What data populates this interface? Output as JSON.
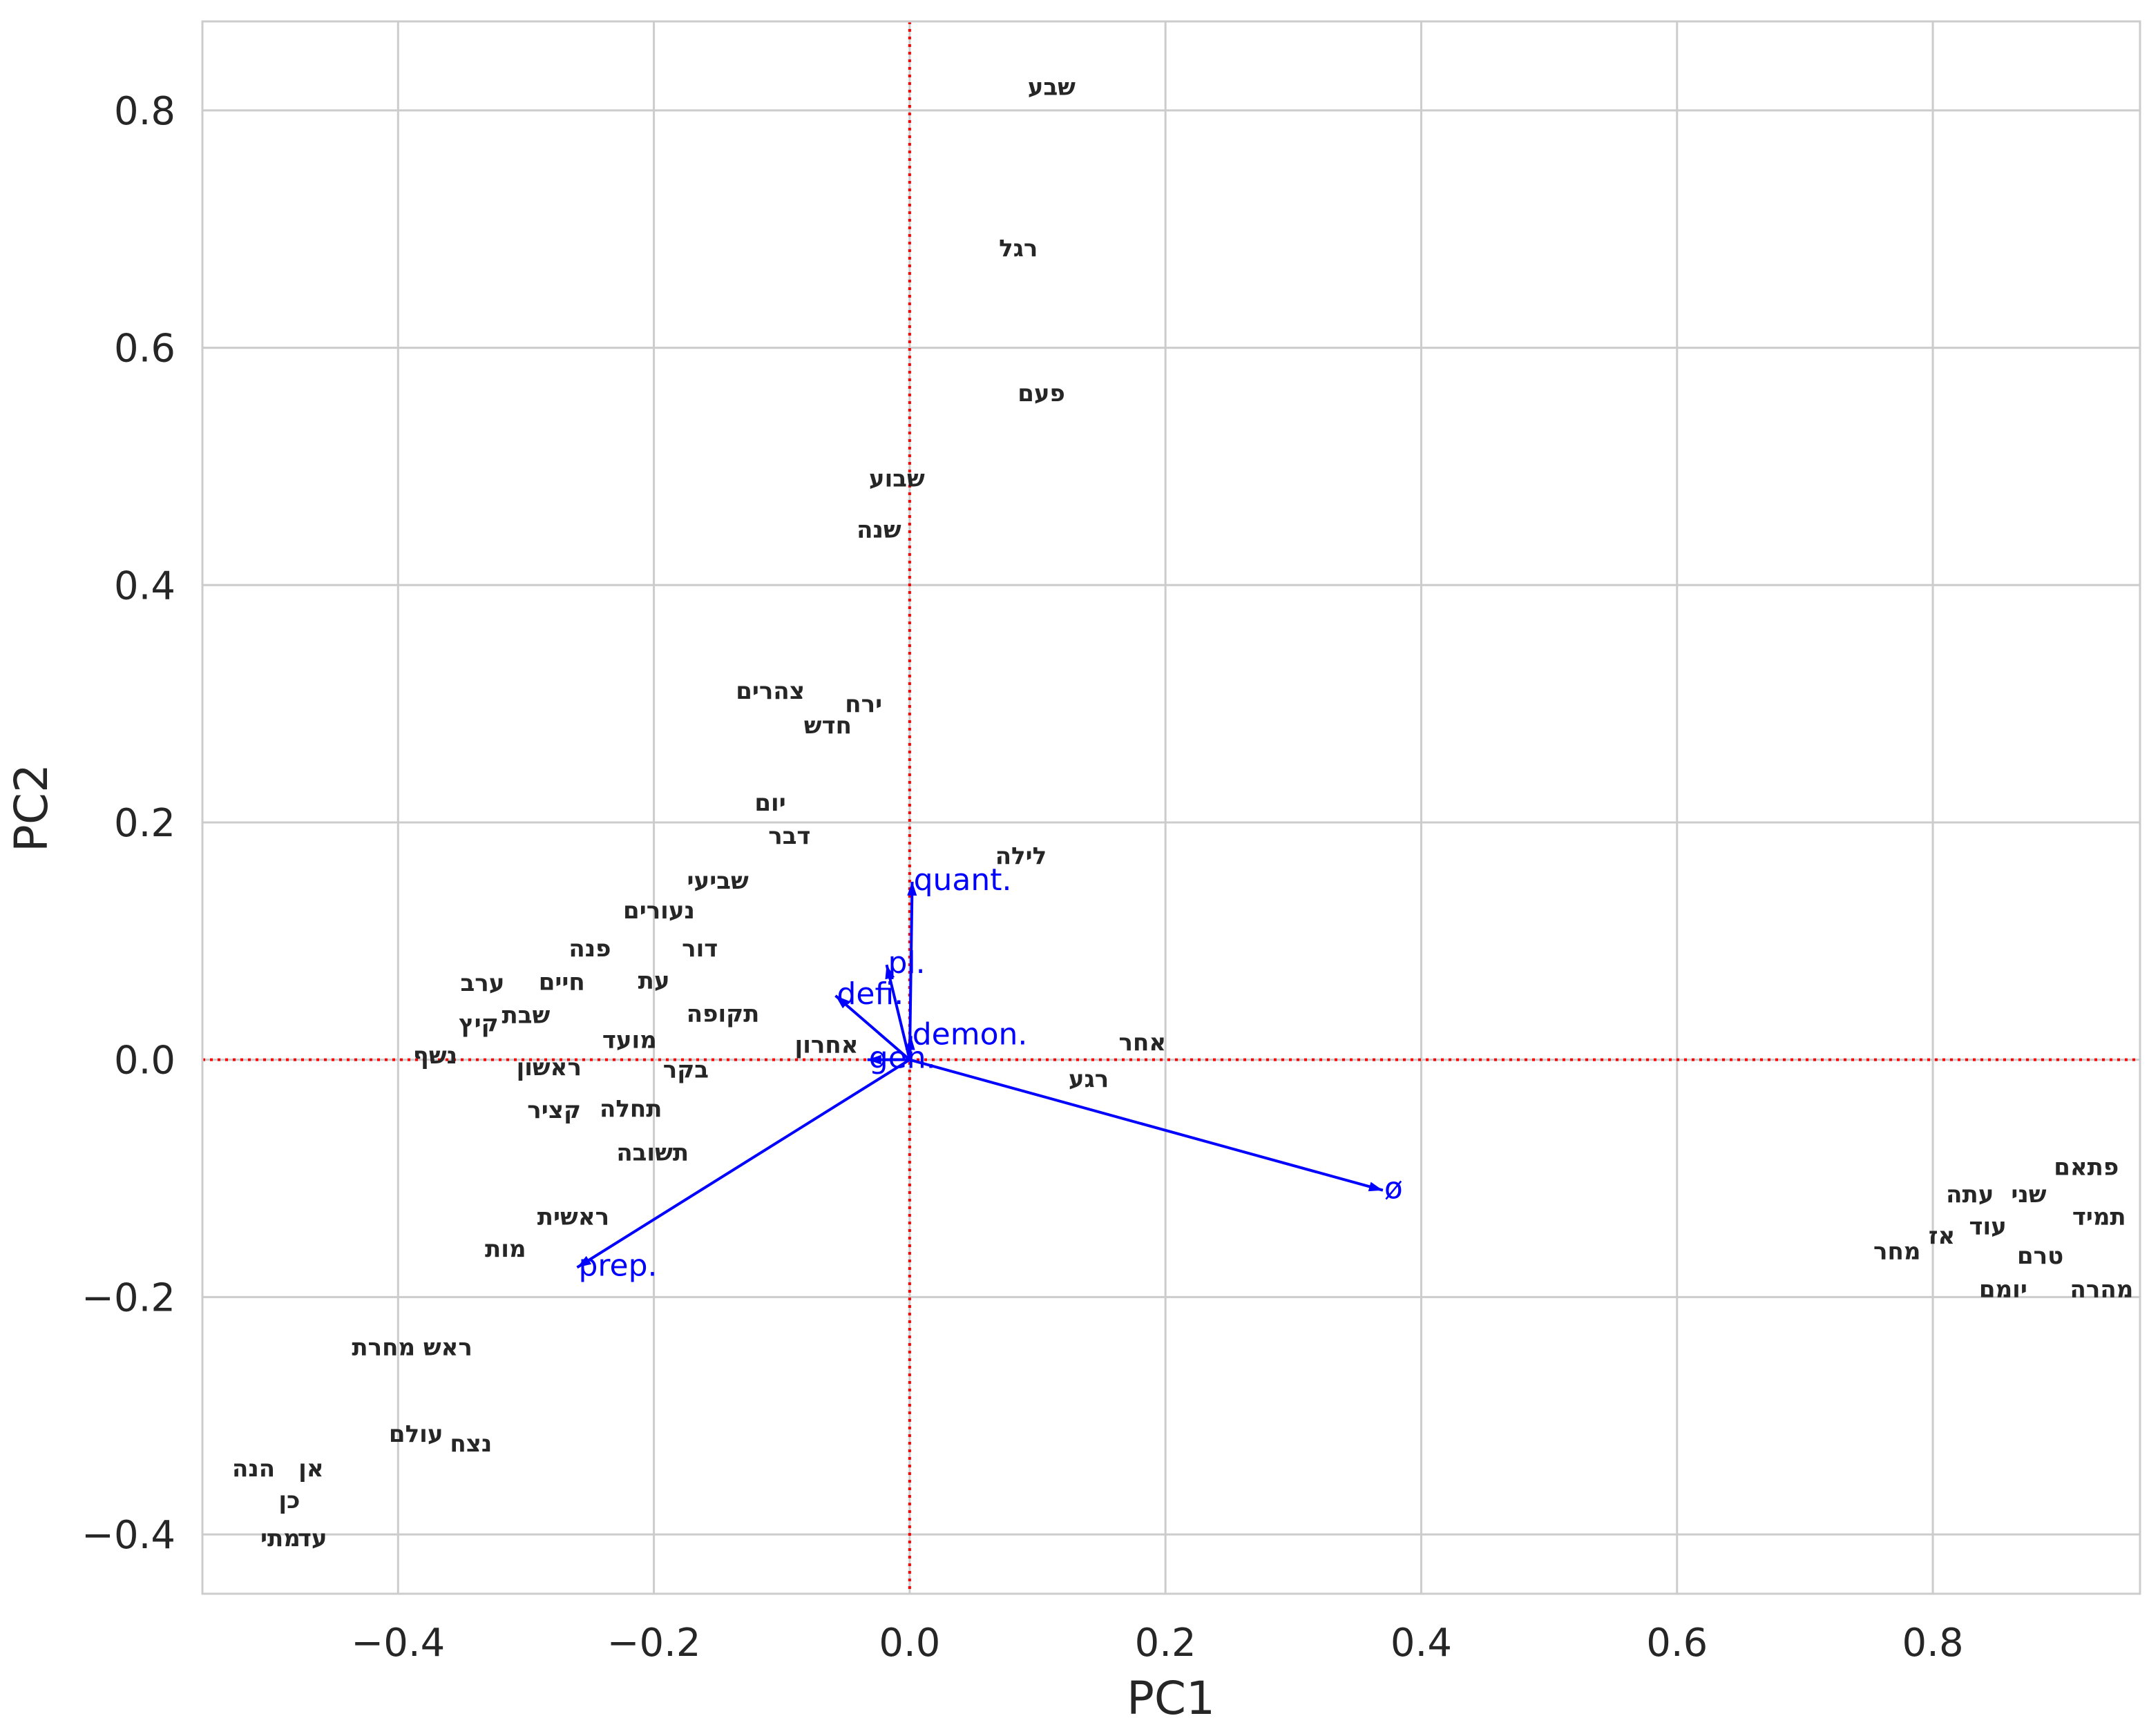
{
  "chart_data": {
    "type": "scatter",
    "xlabel": "PC1",
    "ylabel": "PC2",
    "xlim": [
      -0.553,
      0.962
    ],
    "ylim": [
      -0.45,
      0.875
    ],
    "xticks": [
      -0.4,
      -0.2,
      0.0,
      0.2,
      0.4,
      0.6,
      0.8
    ],
    "yticks": [
      -0.4,
      -0.2,
      0.0,
      0.2,
      0.4,
      0.6,
      0.8
    ],
    "xtick_labels": [
      "−0.4",
      "−0.2",
      "0.0",
      "0.2",
      "0.4",
      "0.6",
      "0.8"
    ],
    "ytick_labels": [
      "−0.4",
      "−0.2",
      "0.0",
      "0.2",
      "0.4",
      "0.6",
      "0.8"
    ],
    "grid": true,
    "reference_lines": {
      "x": 0.0,
      "y": 0.0,
      "color": "#ff0000",
      "style": "dotted"
    },
    "colors": {
      "points": "#262626",
      "vectors": "#0000ff",
      "grid": "#cccccc",
      "reference": "#ff0000"
    },
    "points": [
      {
        "label": "שבע",
        "x": 0.111,
        "y": 0.82
      },
      {
        "label": "רגל",
        "x": 0.085,
        "y": 0.684
      },
      {
        "label": "פעם",
        "x": 0.103,
        "y": 0.562
      },
      {
        "label": "שבוע",
        "x": -0.01,
        "y": 0.49
      },
      {
        "label": "שנה",
        "x": -0.024,
        "y": 0.447
      },
      {
        "label": "צהרים",
        "x": -0.109,
        "y": 0.311
      },
      {
        "label": "ירח",
        "x": -0.036,
        "y": 0.3
      },
      {
        "label": "חדש",
        "x": -0.064,
        "y": 0.282
      },
      {
        "label": "יום",
        "x": -0.109,
        "y": 0.217
      },
      {
        "label": "דבר",
        "x": -0.094,
        "y": 0.189
      },
      {
        "label": "לילה",
        "x": 0.087,
        "y": 0.172
      },
      {
        "label": "שביעי",
        "x": -0.15,
        "y": 0.151
      },
      {
        "label": "נעורים",
        "x": -0.196,
        "y": 0.126
      },
      {
        "label": "פנה",
        "x": -0.25,
        "y": 0.094
      },
      {
        "label": "דור",
        "x": -0.164,
        "y": 0.094
      },
      {
        "label": "ערב",
        "x": -0.334,
        "y": 0.065
      },
      {
        "label": "חיים",
        "x": -0.272,
        "y": 0.066
      },
      {
        "label": "עת",
        "x": -0.2,
        "y": 0.067
      },
      {
        "label": "שבת",
        "x": -0.3,
        "y": 0.038
      },
      {
        "label": "קיץ",
        "x": -0.337,
        "y": 0.031
      },
      {
        "label": "תקופה",
        "x": -0.146,
        "y": 0.039
      },
      {
        "label": "מועד",
        "x": -0.219,
        "y": 0.017
      },
      {
        "label": "אחרון",
        "x": -0.065,
        "y": 0.013
      },
      {
        "label": "אחר",
        "x": 0.182,
        "y": 0.015
      },
      {
        "label": "נשף",
        "x": -0.371,
        "y": 0.004
      },
      {
        "label": "ראשון",
        "x": -0.282,
        "y": -0.006
      },
      {
        "label": "בקר",
        "x": -0.175,
        "y": -0.008
      },
      {
        "label": "רגע",
        "x": 0.14,
        "y": -0.016
      },
      {
        "label": "קציר",
        "x": -0.278,
        "y": -0.042
      },
      {
        "label": "תחלה",
        "x": -0.218,
        "y": -0.041
      },
      {
        "label": "תשובה",
        "x": -0.201,
        "y": -0.078
      },
      {
        "label": "ראשית",
        "x": -0.263,
        "y": -0.132
      },
      {
        "label": "מות",
        "x": -0.316,
        "y": -0.159
      },
      {
        "label": "ראש מחרת",
        "x": -0.389,
        "y": -0.242
      },
      {
        "label": "עולם",
        "x": -0.386,
        "y": -0.315
      },
      {
        "label": "נצח",
        "x": -0.343,
        "y": -0.323
      },
      {
        "label": "הנה",
        "x": -0.513,
        "y": -0.344
      },
      {
        "label": "אן",
        "x": -0.468,
        "y": -0.344
      },
      {
        "label": "כן",
        "x": -0.485,
        "y": -0.371
      },
      {
        "label": "מתי",
        "x": -0.492,
        "y": -0.403
      },
      {
        "label": "עד",
        "x": -0.467,
        "y": -0.403
      },
      {
        "label": "פתאם",
        "x": 0.92,
        "y": -0.09
      },
      {
        "label": "עתה",
        "x": 0.829,
        "y": -0.113
      },
      {
        "label": "שני",
        "x": 0.875,
        "y": -0.113
      },
      {
        "label": "תמיד",
        "x": 0.93,
        "y": -0.132
      },
      {
        "label": "עוד",
        "x": 0.843,
        "y": -0.14
      },
      {
        "label": "אז",
        "x": 0.807,
        "y": -0.148
      },
      {
        "label": "מחר",
        "x": 0.772,
        "y": -0.161
      },
      {
        "label": "טרם",
        "x": 0.884,
        "y": -0.165
      },
      {
        "label": "יומם",
        "x": 0.855,
        "y": -0.193
      },
      {
        "label": "מהרה",
        "x": 0.932,
        "y": -0.193
      }
    ],
    "vectors": [
      {
        "label": "quant.",
        "x": 0.002,
        "y": 0.15
      },
      {
        "label": "pl.",
        "x": -0.018,
        "y": 0.08
      },
      {
        "label": "defi.",
        "x": -0.058,
        "y": 0.054
      },
      {
        "label": "demon.",
        "x": 0.001,
        "y": 0.02
      },
      {
        "label": "gen.",
        "x": -0.033,
        "y": 0.0
      },
      {
        "label": "ø",
        "x": 0.37,
        "y": -0.11
      },
      {
        "label": "prep.",
        "x": -0.26,
        "y": -0.175
      }
    ]
  }
}
